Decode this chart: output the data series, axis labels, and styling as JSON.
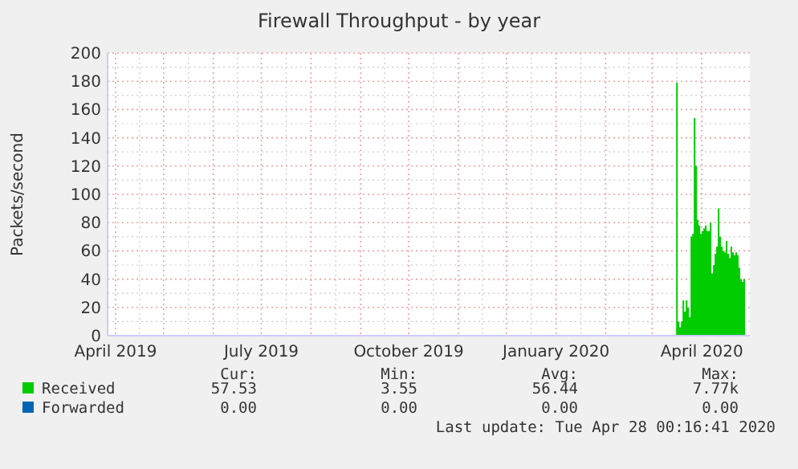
{
  "chart_data": {
    "type": "area",
    "title": "Firewall Throughput - by year",
    "ylabel": "Packets/second",
    "x": [
      "2020-03-15",
      "2020-03-16",
      "2020-03-17",
      "2020-03-18",
      "2020-03-19",
      "2020-03-20",
      "2020-03-21",
      "2020-03-22",
      "2020-03-23",
      "2020-03-24",
      "2020-03-25",
      "2020-03-26",
      "2020-03-27",
      "2020-03-28",
      "2020-03-29",
      "2020-03-30",
      "2020-03-31",
      "2020-04-01",
      "2020-04-02",
      "2020-04-03",
      "2020-04-04",
      "2020-04-05",
      "2020-04-06",
      "2020-04-07",
      "2020-04-08",
      "2020-04-09",
      "2020-04-10",
      "2020-04-11",
      "2020-04-12",
      "2020-04-13",
      "2020-04-14",
      "2020-04-15",
      "2020-04-16",
      "2020-04-17",
      "2020-04-18",
      "2020-04-19",
      "2020-04-20",
      "2020-04-21",
      "2020-04-22",
      "2020-04-23",
      "2020-04-24",
      "2020-04-25",
      "2020-04-26",
      "2020-04-27",
      "2020-04-28"
    ],
    "series": [
      {
        "name": "Received",
        "color": "#00cc00",
        "values": [
          0,
          179,
          10,
          6,
          10,
          25,
          17,
          25,
          20,
          13,
          70,
          72,
          154,
          120,
          82,
          78,
          72,
          74,
          76,
          78,
          74,
          74,
          80,
          44,
          50,
          58,
          63,
          90,
          70,
          63,
          60,
          59,
          67,
          58,
          55,
          63,
          59,
          57,
          59,
          57,
          48,
          40,
          38,
          40,
          57
        ]
      },
      {
        "name": "Forwarded",
        "color": "#0066b3",
        "values": [
          null,
          null,
          null,
          null,
          null,
          null,
          null,
          null,
          null,
          null,
          null,
          null,
          null,
          null,
          null,
          null,
          null,
          null,
          null,
          null,
          null,
          null,
          null,
          null,
          null,
          null,
          null,
          null,
          null,
          null,
          null,
          null,
          null,
          null,
          null,
          null,
          null,
          null,
          null,
          null,
          null,
          null,
          null,
          null,
          null
        ]
      }
    ],
    "xlim": [
      "2019-03-27",
      "2020-05-01"
    ],
    "xticks": [
      {
        "value": "2019-04-01",
        "label": "April 2019"
      },
      {
        "value": "2019-05-01",
        "label": null
      },
      {
        "value": "2019-06-01",
        "label": null
      },
      {
        "value": "2019-07-01",
        "label": "July 2019"
      },
      {
        "value": "2019-08-01",
        "label": null
      },
      {
        "value": "2019-09-01",
        "label": null
      },
      {
        "value": "2019-10-01",
        "label": "October 2019"
      },
      {
        "value": "2019-11-01",
        "label": null
      },
      {
        "value": "2019-12-01",
        "label": null
      },
      {
        "value": "2020-01-01",
        "label": "January 2020"
      },
      {
        "value": "2020-02-01",
        "label": null
      },
      {
        "value": "2020-03-01",
        "label": null
      },
      {
        "value": "2020-04-01",
        "label": "April 2020"
      }
    ],
    "ylim": [
      0,
      200
    ],
    "yticks": [
      0,
      20,
      40,
      60,
      80,
      100,
      120,
      140,
      160,
      180,
      200
    ],
    "grid": true,
    "legend": "bottom",
    "annotations": [
      "Cur:",
      "Min:",
      "Avg:",
      "Max:",
      "57.53",
      "3.55",
      "56.44",
      "7.77k",
      "0.00",
      "0.00",
      "0.00",
      "0.00",
      "Last update: Tue Apr 28 00:16:41 2020"
    ]
  }
}
